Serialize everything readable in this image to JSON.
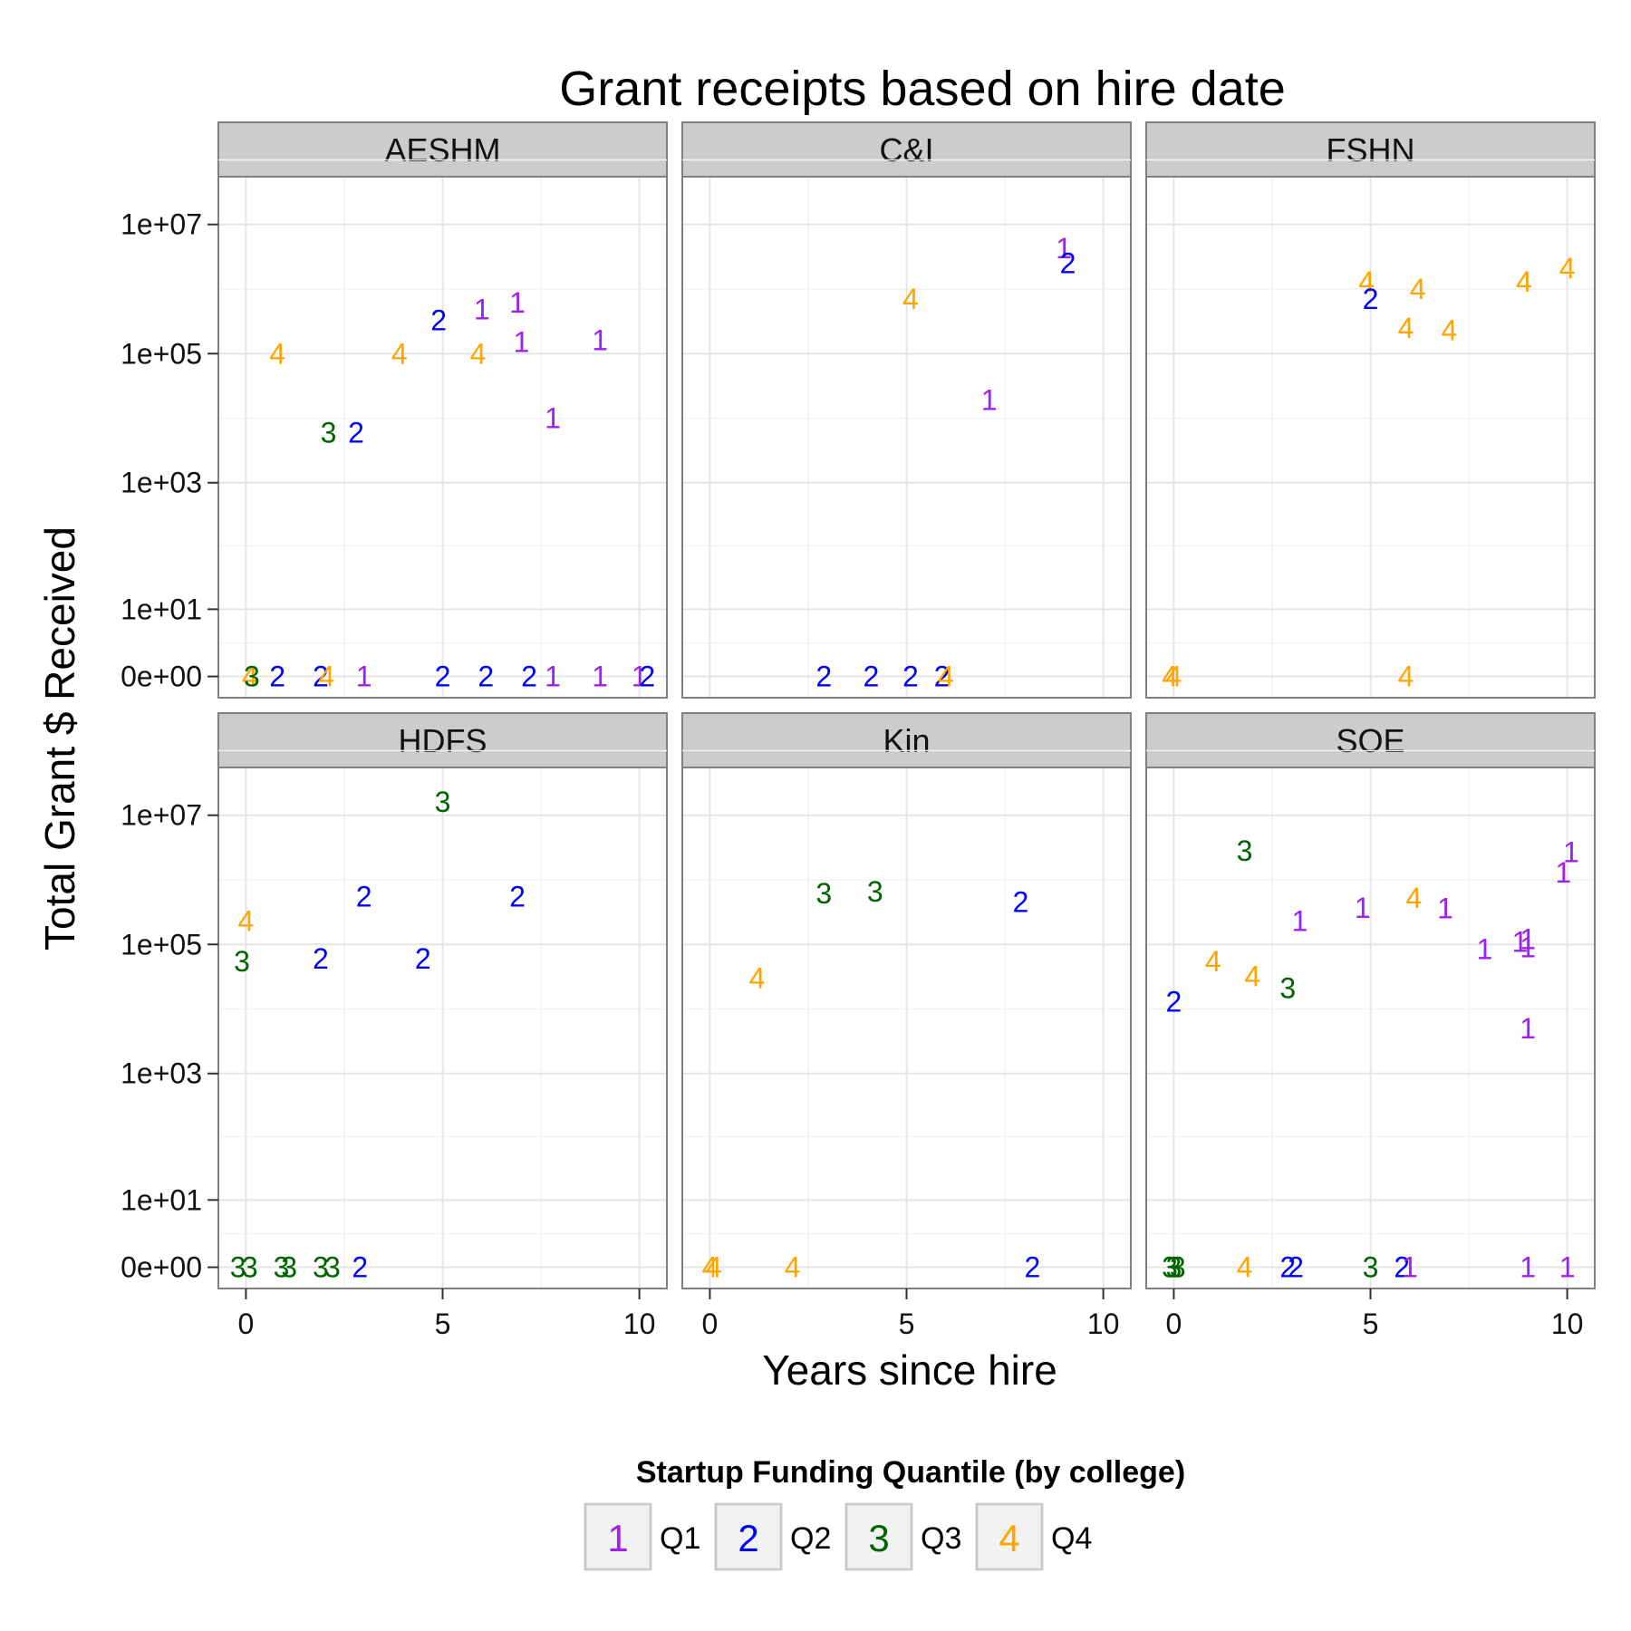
{
  "chart_data": {
    "type": "scatter",
    "title": "Grant receipts based on hire date",
    "xlabel": "Years since hire",
    "ylabel": "Total Grant $ Received",
    "xlim": [
      -0.7,
      10.7
    ],
    "x_ticks": [
      0,
      5,
      10
    ],
    "y_scale": "log10(y+1)",
    "y_ticks": [
      {
        "value": 0,
        "label": "0e+00"
      },
      {
        "value": 10,
        "label": "1e+01"
      },
      {
        "value": 1000,
        "label": "1e+03"
      },
      {
        "value": 100000,
        "label": "1e+05"
      },
      {
        "value": 10000000,
        "label": "1e+07"
      }
    ],
    "grid": true,
    "legend": {
      "title": "Startup Funding Quantile (by college)",
      "placement": "bottom",
      "entries": [
        {
          "key": "1",
          "label": "Q1",
          "color": "#A020F0"
        },
        {
          "key": "2",
          "label": "Q2",
          "color": "#0000FF"
        },
        {
          "key": "3",
          "label": "Q3",
          "color": "#006400"
        },
        {
          "key": "4",
          "label": "Q4",
          "color": "#FFA500"
        }
      ]
    },
    "panels": [
      {
        "name": "AESHM",
        "points": [
          [
            0.1,
            0,
            "4"
          ],
          [
            0.15,
            0,
            "3"
          ],
          [
            0.8,
            0,
            "2"
          ],
          [
            1.9,
            0,
            "2"
          ],
          [
            2.05,
            0,
            "4"
          ],
          [
            3.0,
            0,
            "1"
          ],
          [
            5.0,
            0,
            "2"
          ],
          [
            6.1,
            0,
            "2"
          ],
          [
            7.2,
            0,
            "2"
          ],
          [
            7.8,
            0,
            "1"
          ],
          [
            9.0,
            0,
            "1"
          ],
          [
            10.0,
            0,
            "1"
          ],
          [
            10.2,
            0,
            "2"
          ],
          [
            0.8,
            100000,
            "4"
          ],
          [
            3.9,
            100000,
            "4"
          ],
          [
            5.9,
            100000,
            "4"
          ],
          [
            2.1,
            6000,
            "3"
          ],
          [
            2.8,
            6000,
            "2"
          ],
          [
            4.9,
            330000,
            "2"
          ],
          [
            6.0,
            480000,
            "1"
          ],
          [
            6.9,
            620000,
            "1"
          ],
          [
            7.0,
            150000,
            "1"
          ],
          [
            9.0,
            160000,
            "1"
          ],
          [
            7.8,
            10000,
            "1"
          ]
        ]
      },
      {
        "name": "C&I",
        "points": [
          [
            2.9,
            0,
            "2"
          ],
          [
            4.1,
            0,
            "2"
          ],
          [
            5.1,
            0,
            "2"
          ],
          [
            5.9,
            0,
            "2"
          ],
          [
            6.0,
            0,
            "4"
          ],
          [
            5.1,
            700000,
            "4"
          ],
          [
            7.1,
            19000,
            "1"
          ],
          [
            9.0,
            4300000,
            "1"
          ],
          [
            9.1,
            2500000,
            "2"
          ]
        ]
      },
      {
        "name": "FSHN",
        "points": [
          [
            -0.1,
            0,
            "4"
          ],
          [
            0.0,
            0,
            "4"
          ],
          [
            5.9,
            0,
            "4"
          ],
          [
            4.9,
            1300000,
            "4"
          ],
          [
            5.0,
            700000,
            "2"
          ],
          [
            6.2,
            1000000,
            "4"
          ],
          [
            5.9,
            250000,
            "4"
          ],
          [
            7.0,
            230000,
            "4"
          ],
          [
            8.9,
            1300000,
            "4"
          ],
          [
            10.0,
            2100000,
            "4"
          ]
        ]
      },
      {
        "name": "HDFS",
        "points": [
          [
            -0.2,
            0,
            "3"
          ],
          [
            0.1,
            0,
            "3"
          ],
          [
            0.9,
            0,
            "3"
          ],
          [
            1.1,
            0,
            "3"
          ],
          [
            1.9,
            0,
            "3"
          ],
          [
            2.2,
            0,
            "3"
          ],
          [
            2.9,
            0,
            "2"
          ],
          [
            0.0,
            230000,
            "4"
          ],
          [
            -0.1,
            55000,
            "3"
          ],
          [
            5.0,
            16000000,
            "3"
          ],
          [
            3.0,
            550000,
            "2"
          ],
          [
            6.9,
            550000,
            "2"
          ],
          [
            1.9,
            60000,
            "2"
          ],
          [
            4.5,
            60000,
            "2"
          ]
        ]
      },
      {
        "name": "Kin",
        "points": [
          [
            0.0,
            0,
            "4"
          ],
          [
            0.1,
            0,
            "4"
          ],
          [
            2.1,
            0,
            "4"
          ],
          [
            8.2,
            0,
            "2"
          ],
          [
            1.2,
            30000,
            "4"
          ],
          [
            2.9,
            620000,
            "3"
          ],
          [
            4.2,
            660000,
            "3"
          ],
          [
            7.9,
            450000,
            "2"
          ]
        ]
      },
      {
        "name": "SOE",
        "points": [
          [
            -0.1,
            0,
            "3"
          ],
          [
            0.0,
            0,
            "3"
          ],
          [
            0.1,
            0,
            "3"
          ],
          [
            1.8,
            0,
            "4"
          ],
          [
            2.9,
            0,
            "2"
          ],
          [
            3.1,
            0,
            "2"
          ],
          [
            5.0,
            0,
            "3"
          ],
          [
            5.8,
            0,
            "2"
          ],
          [
            6.0,
            0,
            "1"
          ],
          [
            9.0,
            0,
            "1"
          ],
          [
            10.0,
            0,
            "1"
          ],
          [
            0.0,
            13000,
            "2"
          ],
          [
            1.0,
            55000,
            "4"
          ],
          [
            2.0,
            32000,
            "4"
          ],
          [
            2.9,
            21000,
            "3"
          ],
          [
            1.8,
            2800000,
            "3"
          ],
          [
            3.2,
            230000,
            "1"
          ],
          [
            4.8,
            370000,
            "1"
          ],
          [
            6.1,
            520000,
            "4"
          ],
          [
            6.9,
            360000,
            "1"
          ],
          [
            7.9,
            85000,
            "1"
          ],
          [
            8.8,
            110000,
            "1"
          ],
          [
            9.0,
            120000,
            "1"
          ],
          [
            9.0,
            90000,
            "1"
          ],
          [
            9.0,
            5000,
            "1"
          ],
          [
            9.9,
            1300000,
            "1"
          ],
          [
            10.1,
            2700000,
            "1"
          ]
        ]
      }
    ]
  }
}
